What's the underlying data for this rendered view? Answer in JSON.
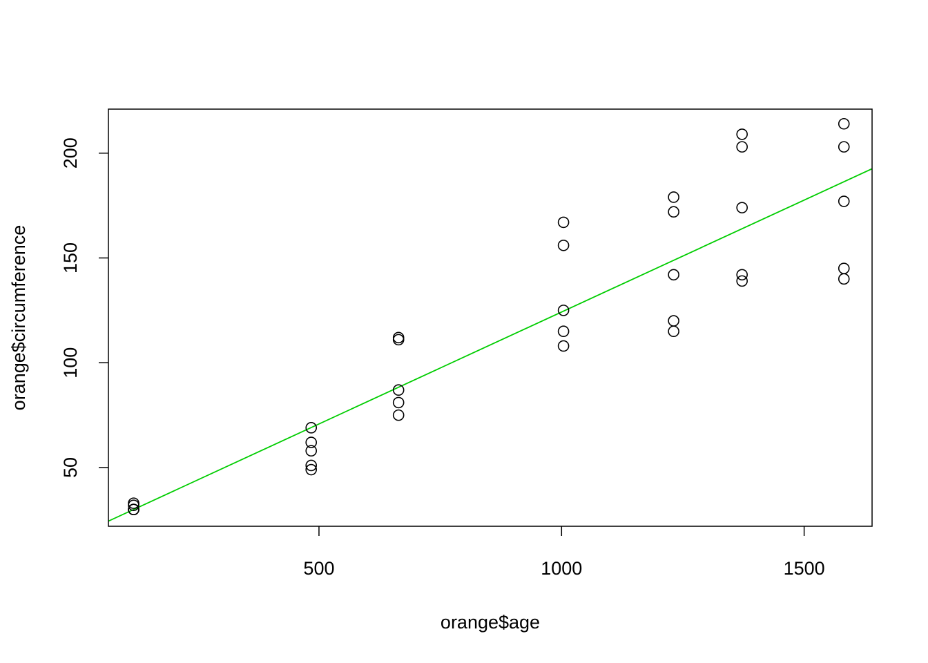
{
  "chart_data": {
    "type": "scatter",
    "title": "",
    "xlabel": "orange$age",
    "ylabel": "orange$circumference",
    "xlim": [
      66,
      1640
    ],
    "ylim": [
      22,
      221
    ],
    "xticks": [
      500,
      1000,
      1500
    ],
    "yticks": [
      50,
      100,
      150,
      200
    ],
    "grid": false,
    "point_color": "#000000",
    "line_color": "#00cd00",
    "regression_line": {
      "intercept": 17.4,
      "slope": 0.1068
    },
    "points": [
      {
        "x": 118,
        "y": 30
      },
      {
        "x": 484,
        "y": 58
      },
      {
        "x": 664,
        "y": 87
      },
      {
        "x": 1004,
        "y": 115
      },
      {
        "x": 1231,
        "y": 120
      },
      {
        "x": 1372,
        "y": 142
      },
      {
        "x": 1582,
        "y": 145
      },
      {
        "x": 118,
        "y": 33
      },
      {
        "x": 484,
        "y": 69
      },
      {
        "x": 664,
        "y": 111
      },
      {
        "x": 1004,
        "y": 156
      },
      {
        "x": 1231,
        "y": 172
      },
      {
        "x": 1372,
        "y": 203
      },
      {
        "x": 1582,
        "y": 203
      },
      {
        "x": 118,
        "y": 30
      },
      {
        "x": 484,
        "y": 51
      },
      {
        "x": 664,
        "y": 75
      },
      {
        "x": 1004,
        "y": 108
      },
      {
        "x": 1231,
        "y": 115
      },
      {
        "x": 1372,
        "y": 139
      },
      {
        "x": 1582,
        "y": 140
      },
      {
        "x": 118,
        "y": 32
      },
      {
        "x": 484,
        "y": 62
      },
      {
        "x": 664,
        "y": 112
      },
      {
        "x": 1004,
        "y": 167
      },
      {
        "x": 1231,
        "y": 179
      },
      {
        "x": 1372,
        "y": 209
      },
      {
        "x": 1582,
        "y": 214
      },
      {
        "x": 118,
        "y": 30
      },
      {
        "x": 484,
        "y": 49
      },
      {
        "x": 664,
        "y": 81
      },
      {
        "x": 1004,
        "y": 125
      },
      {
        "x": 1231,
        "y": 142
      },
      {
        "x": 1372,
        "y": 174
      },
      {
        "x": 1582,
        "y": 177
      }
    ]
  }
}
